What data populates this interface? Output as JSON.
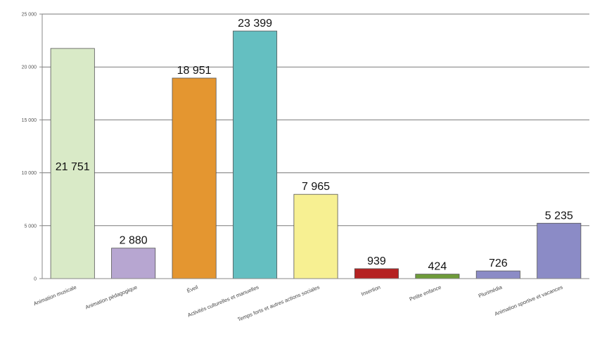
{
  "chart_data": {
    "type": "bar",
    "title": "",
    "xlabel": "",
    "ylabel": "",
    "ylim": [
      0,
      25000
    ],
    "yticks": [
      0,
      5000,
      10000,
      15000,
      20000,
      25000
    ],
    "ytick_labels": [
      "0",
      "5 000",
      "10 000",
      "15 000",
      "20 000",
      "25 000"
    ],
    "grid": true,
    "legend": "none",
    "categories": [
      "Animation musicale",
      "Animation pédagogique",
      "Éveil",
      "Activités culturelles et manuelles",
      "Temps forts et autres actions sociales",
      "Insertion",
      "Petite enfance",
      "Plurimédia",
      "Animation sportive et vacances"
    ],
    "values": [
      21751,
      2880,
      18951,
      23399,
      7965,
      939,
      424,
      726,
      5235
    ],
    "value_labels": [
      "21 751",
      "2 880",
      "18 951",
      "23 399",
      "7 965",
      "939",
      "424",
      "726",
      "5 235"
    ],
    "colors": [
      "#d9eac7",
      "#b7a6d1",
      "#e49630",
      "#64bfc1",
      "#f7f092",
      "#b52222",
      "#6e9b3a",
      "#8b8bc6",
      "#8b8bc6"
    ]
  }
}
